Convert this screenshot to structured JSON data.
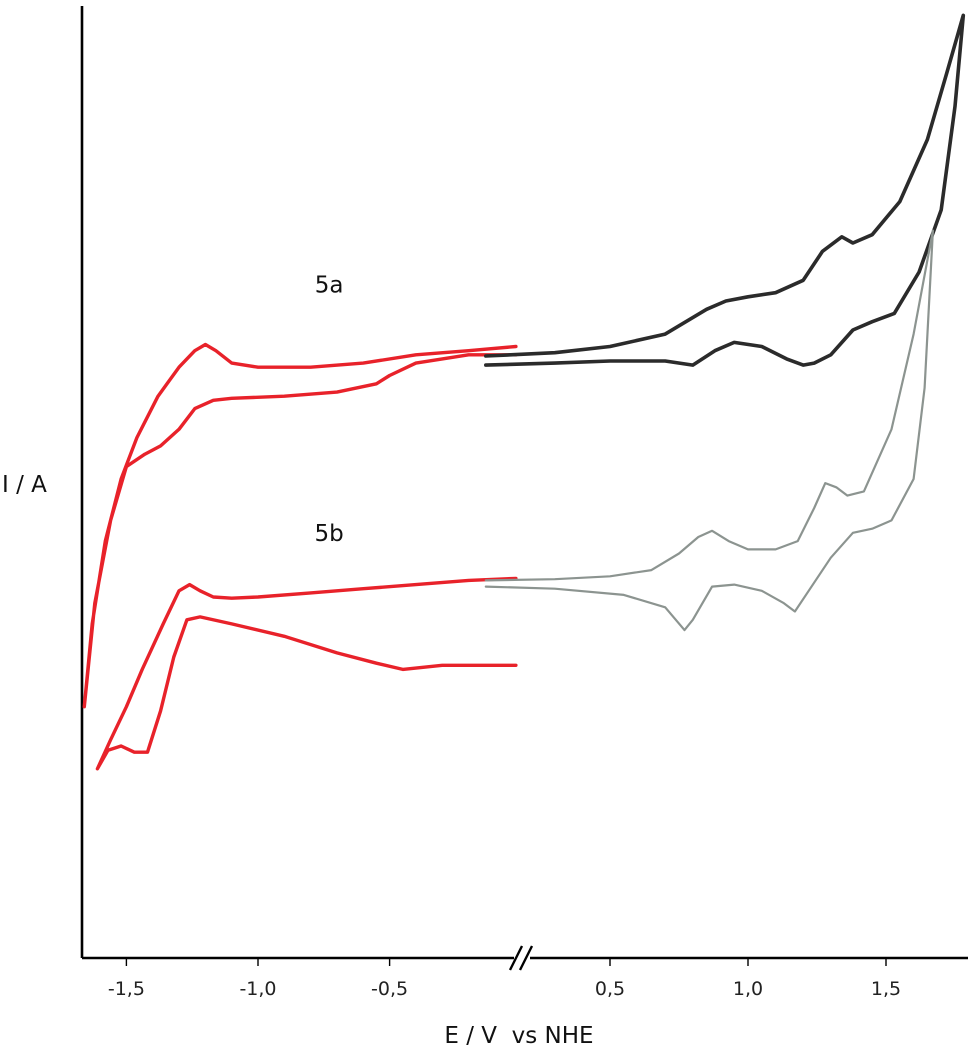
{
  "chart_data": {
    "type": "line",
    "title": "",
    "xlabel": "E / V  vs NHE",
    "ylabel": "I / A",
    "axis_break": true,
    "y_ticks_shown": false,
    "grid": false,
    "x_ticks": [
      {
        "value": -1.5,
        "label": "-1,5"
      },
      {
        "value": -1.0,
        "label": "-1,0"
      },
      {
        "value": -0.5,
        "label": "-0,5"
      },
      {
        "value": 0.5,
        "label": "0,5"
      },
      {
        "value": 1.0,
        "label": "1,0"
      },
      {
        "value": 1.5,
        "label": "1,5"
      }
    ],
    "annotations": [
      {
        "text": "5a",
        "x": -0.73,
        "y": 0.95
      },
      {
        "text": "5b",
        "x": -0.73,
        "y": 0.35
      }
    ],
    "colors": {
      "negative_region": "#e8222a",
      "positive_5a": "#2b2b2b",
      "positive_5b": "#8c9490"
    },
    "series": [
      {
        "curve": "5a",
        "region": "negative",
        "color": "#e8222a",
        "x": [
          -0.02,
          -0.2,
          -0.4,
          -0.6,
          -0.8,
          -1.0,
          -1.1,
          -1.16,
          -1.2,
          -1.24,
          -1.3,
          -1.38,
          -1.46,
          -1.52,
          -1.58,
          -1.63,
          -1.66,
          -1.62,
          -1.56,
          -1.5,
          -1.43,
          -1.37,
          -1.3,
          -1.24,
          -1.17,
          -1.1,
          -0.9,
          -0.7,
          -0.55,
          -0.5,
          -0.4,
          -0.2,
          -0.02
        ],
        "y": [
          0.82,
          0.81,
          0.8,
          0.78,
          0.77,
          0.77,
          0.78,
          0.81,
          0.825,
          0.81,
          0.77,
          0.7,
          0.6,
          0.5,
          0.35,
          0.15,
          -0.05,
          0.2,
          0.4,
          0.53,
          0.56,
          0.58,
          0.62,
          0.67,
          0.69,
          0.695,
          0.7,
          0.71,
          0.73,
          0.75,
          0.78,
          0.8,
          0.8
        ]
      },
      {
        "curve": "5b",
        "region": "negative",
        "color": "#e8222a",
        "x": [
          -0.02,
          -0.2,
          -0.4,
          -0.6,
          -0.8,
          -1.0,
          -1.1,
          -1.17,
          -1.22,
          -1.26,
          -1.3,
          -1.36,
          -1.44,
          -1.5,
          -1.56,
          -1.61,
          -1.57,
          -1.52,
          -1.47,
          -1.42,
          -1.37,
          -1.32,
          -1.27,
          -1.22,
          -1.1,
          -0.9,
          -0.7,
          -0.55,
          -0.45,
          -0.3,
          -0.02
        ],
        "y": [
          0.26,
          0.255,
          0.245,
          0.235,
          0.225,
          0.215,
          0.212,
          0.215,
          0.23,
          0.245,
          0.23,
          0.15,
          0.04,
          -0.05,
          -0.13,
          -0.2,
          -0.155,
          -0.145,
          -0.16,
          -0.16,
          -0.06,
          0.07,
          0.16,
          0.167,
          0.15,
          0.12,
          0.08,
          0.055,
          0.04,
          0.05,
          0.05
        ]
      },
      {
        "curve": "5a",
        "region": "positive",
        "color": "#2b2b2b",
        "x": [
          0.05,
          0.3,
          0.5,
          0.7,
          0.85,
          0.92,
          1.0,
          1.1,
          1.2,
          1.27,
          1.34,
          1.38,
          1.45,
          1.55,
          1.65,
          1.72,
          1.78,
          1.75,
          1.7,
          1.62,
          1.53,
          1.45,
          1.38,
          1.3,
          1.24,
          1.2,
          1.14,
          1.05,
          0.95,
          0.88,
          0.8,
          0.7,
          0.5,
          0.3,
          0.05
        ],
        "y": [
          0.797,
          0.805,
          0.82,
          0.85,
          0.91,
          0.93,
          0.94,
          0.95,
          0.98,
          1.05,
          1.085,
          1.07,
          1.09,
          1.17,
          1.32,
          1.48,
          1.62,
          1.4,
          1.15,
          1.0,
          0.9,
          0.88,
          0.86,
          0.8,
          0.78,
          0.775,
          0.79,
          0.82,
          0.83,
          0.81,
          0.775,
          0.785,
          0.785,
          0.78,
          0.775
        ]
      },
      {
        "curve": "5b",
        "region": "positive",
        "color": "#8c9490",
        "x": [
          0.05,
          0.3,
          0.5,
          0.65,
          0.75,
          0.82,
          0.87,
          0.93,
          1.0,
          1.1,
          1.18,
          1.24,
          1.28,
          1.32,
          1.36,
          1.42,
          1.52,
          1.6,
          1.67,
          1.64,
          1.6,
          1.52,
          1.45,
          1.38,
          1.3,
          1.22,
          1.17,
          1.13,
          1.05,
          0.95,
          0.87,
          0.8,
          0.77,
          0.7,
          0.55,
          0.3,
          0.05
        ],
        "y": [
          0.255,
          0.258,
          0.265,
          0.28,
          0.32,
          0.36,
          0.375,
          0.35,
          0.33,
          0.33,
          0.35,
          0.43,
          0.49,
          0.48,
          0.46,
          0.47,
          0.62,
          0.85,
          1.1,
          0.72,
          0.5,
          0.4,
          0.38,
          0.37,
          0.31,
          0.23,
          0.18,
          0.2,
          0.23,
          0.245,
          0.24,
          0.16,
          0.135,
          0.19,
          0.22,
          0.235,
          0.24
        ]
      }
    ]
  }
}
